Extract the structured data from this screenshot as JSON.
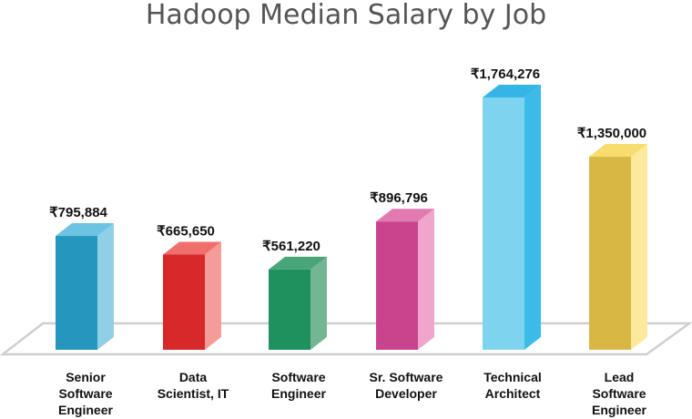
{
  "chart_data": {
    "type": "bar",
    "title": "Hadoop Median Salary by Job",
    "currency_symbol": "₹",
    "categories": [
      [
        "Senior",
        "Software",
        "Engineer"
      ],
      [
        "Data",
        "Scientist, IT"
      ],
      [
        "Software",
        "Engineer"
      ],
      [
        "Sr. Software",
        "Developer"
      ],
      [
        "Technical",
        "Architect"
      ],
      [
        "Lead",
        "Software",
        "Engineer"
      ]
    ],
    "values": [
      795884,
      665650,
      561220,
      896796,
      1764276,
      1350000
    ],
    "value_labels": [
      "795,884",
      "665,650",
      "561,220",
      "896,796",
      "1,764,276",
      "1,350,000"
    ],
    "colors": [
      {
        "front": "#2596be",
        "side": "#8fd0e6",
        "top": "#6cc3e2"
      },
      {
        "front": "#d7282a",
        "side": "#f59b98",
        "top": "#ee6f6c"
      },
      {
        "front": "#1e915e",
        "side": "#72b693",
        "top": "#4aa57a"
      },
      {
        "front": "#c9448d",
        "side": "#f0a6cc",
        "top": "#e27ab2"
      },
      {
        "front": "#7ed4ef",
        "side": "#3bbbe8",
        "top": "#34b5e5"
      },
      {
        "front": "#d8b745",
        "side": "#fbe99c",
        "top": "#f7dd6e"
      }
    ],
    "xlabel": "",
    "ylabel": "",
    "grid": false,
    "legend": "none"
  }
}
